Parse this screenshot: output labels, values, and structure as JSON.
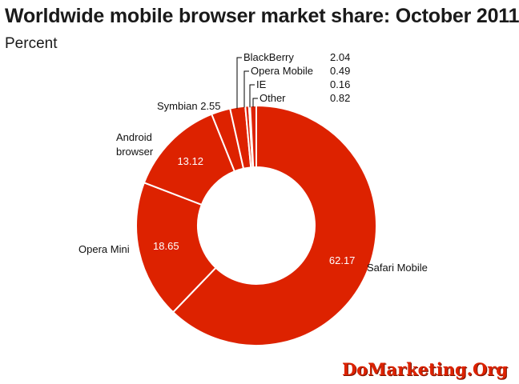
{
  "title": "Worldwide mobile browser market share: October 2011",
  "subtitle": "Percent",
  "watermark": "DoMarketing.Org",
  "colors": {
    "slice": "#dd2200",
    "separator": "#ffffff",
    "leader": "#000000"
  },
  "chart_data": {
    "type": "pie",
    "title": "Worldwide mobile browser market share: October 2011",
    "subtitle": "Percent",
    "donut": true,
    "slices": [
      {
        "label": "Safari Mobile",
        "value": 62.17,
        "value_text": "62.17"
      },
      {
        "label": "Opera Mini",
        "value": 18.65,
        "value_text": "18.65"
      },
      {
        "label": "Android browser",
        "value": 13.12,
        "value_text": "13.12"
      },
      {
        "label": "Symbian",
        "value": 2.55,
        "value_text": "2.55"
      },
      {
        "label": "BlackBerry",
        "value": 2.04,
        "value_text": "2.04"
      },
      {
        "label": "Opera Mobile",
        "value": 0.49,
        "value_text": "0.49"
      },
      {
        "label": "IE",
        "value": 0.16,
        "value_text": "0.16"
      },
      {
        "label": "Other",
        "value": 0.82,
        "value_text": "0.82"
      }
    ]
  }
}
